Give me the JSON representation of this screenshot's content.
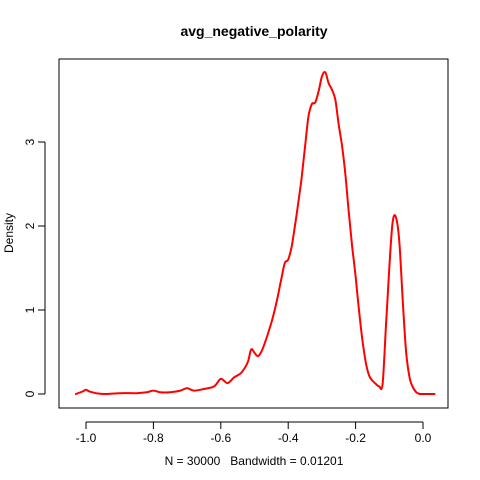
{
  "chart_data": {
    "type": "line",
    "title": "avg_negative_polarity",
    "xlabel": "N = 30000   Bandwidth = 0.01201",
    "ylabel": "Density",
    "xlim": [
      -1.04,
      0.04
    ],
    "ylim": [
      0,
      3.82
    ],
    "x_ticks": [
      -1.0,
      -0.8,
      -0.6,
      -0.4,
      -0.2,
      0.0
    ],
    "x_tick_labels": [
      "-1.0",
      "-0.8",
      "-0.6",
      "-0.4",
      "-0.2",
      "0.0"
    ],
    "y_ticks": [
      0,
      1,
      2,
      3
    ],
    "y_tick_labels": [
      "0",
      "1",
      "2",
      "3"
    ],
    "grid": false,
    "series": [
      {
        "color": "#ff0000",
        "x": [
          -1.03,
          -1.01,
          -1.0,
          -0.99,
          -0.97,
          -0.94,
          -0.9,
          -0.85,
          -0.82,
          -0.8,
          -0.78,
          -0.75,
          -0.72,
          -0.7,
          -0.68,
          -0.65,
          -0.62,
          -0.6,
          -0.58,
          -0.56,
          -0.54,
          -0.52,
          -0.51,
          -0.5,
          -0.49,
          -0.48,
          -0.47,
          -0.46,
          -0.45,
          -0.44,
          -0.43,
          -0.42,
          -0.41,
          -0.4,
          -0.39,
          -0.38,
          -0.37,
          -0.36,
          -0.35,
          -0.34,
          -0.33,
          -0.32,
          -0.31,
          -0.3,
          -0.29,
          -0.28,
          -0.27,
          -0.26,
          -0.25,
          -0.24,
          -0.23,
          -0.22,
          -0.21,
          -0.2,
          -0.19,
          -0.18,
          -0.17,
          -0.16,
          -0.15,
          -0.14,
          -0.13,
          -0.12,
          -0.11,
          -0.1,
          -0.09,
          -0.08,
          -0.07,
          -0.06,
          -0.05,
          -0.04,
          -0.03,
          -0.02,
          -0.015,
          -0.01,
          -0.005,
          0.0,
          0.005,
          0.01,
          0.015,
          0.02,
          0.025,
          0.03,
          0.034
        ],
        "y": [
          0.0,
          0.03,
          0.05,
          0.03,
          0.01,
          0.0,
          0.01,
          0.01,
          0.02,
          0.04,
          0.02,
          0.02,
          0.04,
          0.07,
          0.04,
          0.06,
          0.09,
          0.18,
          0.13,
          0.2,
          0.25,
          0.38,
          0.53,
          0.49,
          0.45,
          0.5,
          0.6,
          0.72,
          0.85,
          1.0,
          1.18,
          1.38,
          1.56,
          1.6,
          1.75,
          2.0,
          2.28,
          2.58,
          2.95,
          3.3,
          3.45,
          3.47,
          3.6,
          3.78,
          3.83,
          3.7,
          3.62,
          3.5,
          3.2,
          2.95,
          2.6,
          2.15,
          1.75,
          1.4,
          1.0,
          0.65,
          0.38,
          0.22,
          0.16,
          0.12,
          0.09,
          0.12,
          0.8,
          1.5,
          2.05,
          2.1,
          1.8,
          1.1,
          0.5,
          0.2,
          0.08,
          0.02,
          0.01,
          0.0,
          0.0,
          0.0,
          0.0,
          0.0,
          0.0,
          0.0,
          0.0,
          0.0,
          0.0
        ]
      }
    ]
  }
}
